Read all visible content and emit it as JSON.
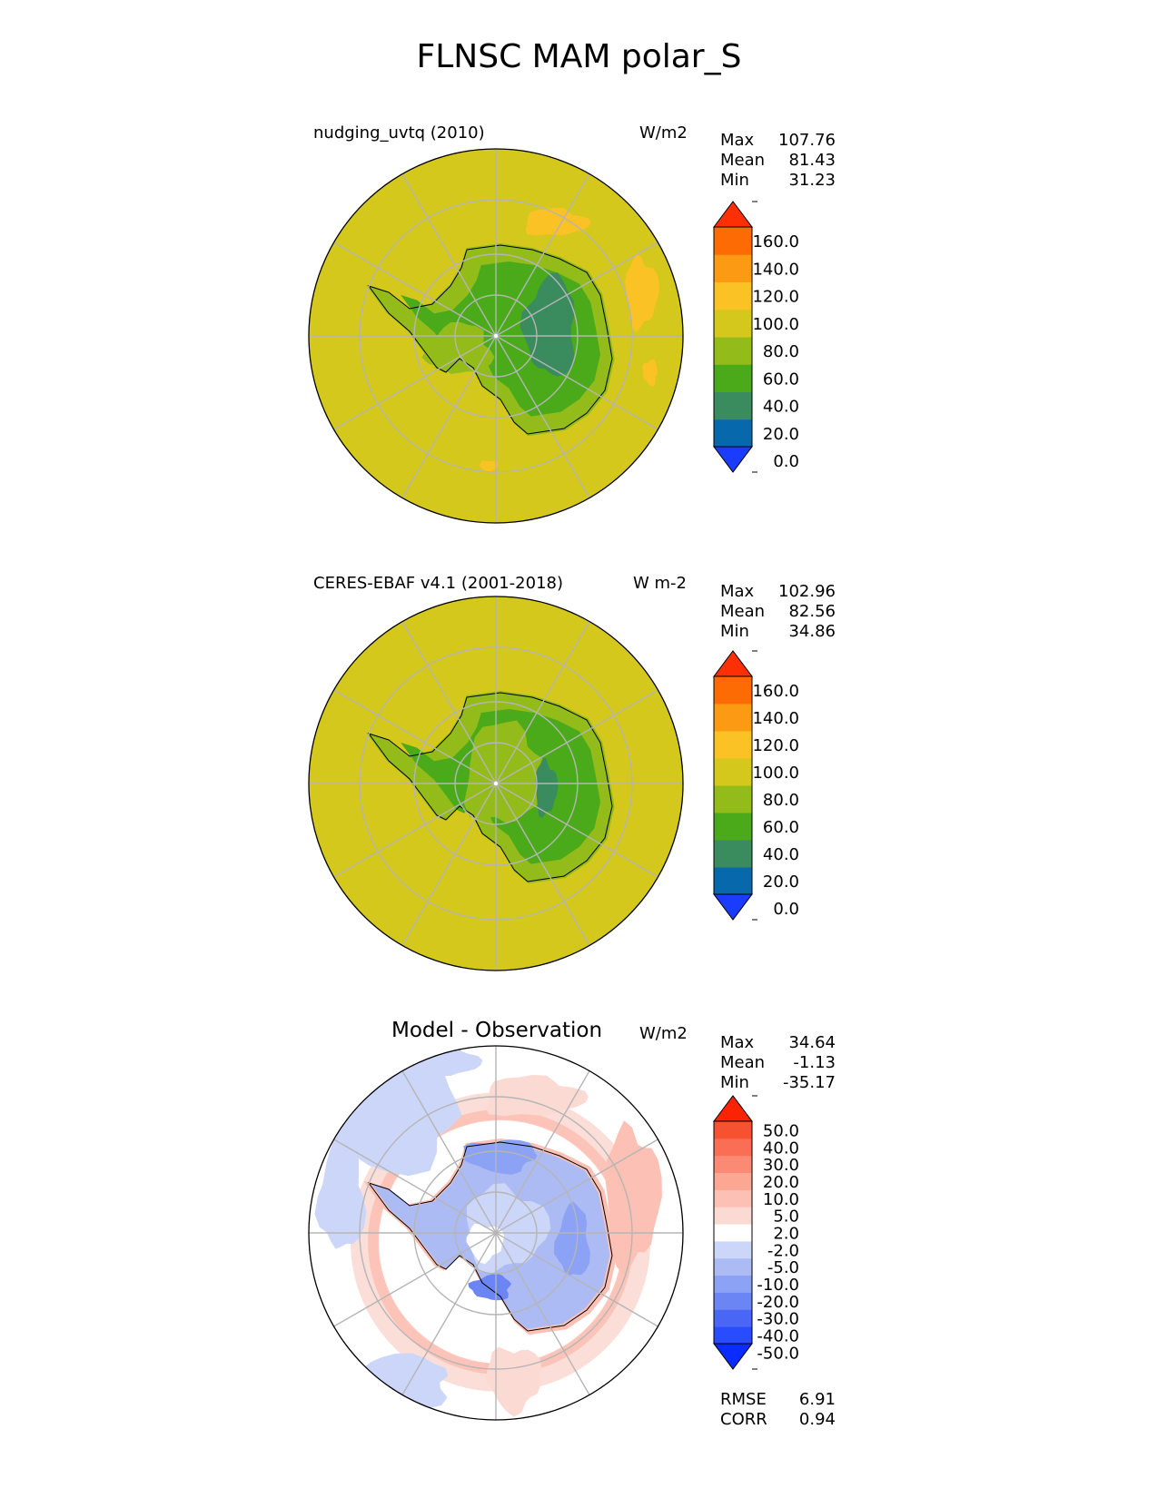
{
  "figure_title": "FLNSC MAM polar_S",
  "panels": [
    {
      "title_left": "nudging_uvtq (2010)",
      "units": "W/m2",
      "stats": {
        "labels": [
          "Max",
          "Mean",
          "Min"
        ],
        "values": [
          "107.76",
          "81.43",
          "31.23"
        ]
      },
      "colorbar": {
        "levels": [
          "160.0",
          "140.0",
          "120.0",
          "100.0",
          "80.0",
          "60.0",
          "40.0",
          "20.0",
          "0.0"
        ],
        "colors": [
          "#1a3cff",
          "#0868ac",
          "#3a8b5e",
          "#4aaa1a",
          "#93bb1a",
          "#d4c81c",
          "#fbc225",
          "#fd9a14",
          "#fd6c04",
          "#fd2f04"
        ]
      }
    },
    {
      "title_left": "CERES-EBAF v4.1 (2001-2018)",
      "units": "W m-2",
      "stats": {
        "labels": [
          "Max",
          "Mean",
          "Min"
        ],
        "values": [
          "102.96",
          "82.56",
          "34.86"
        ]
      },
      "colorbar": {
        "levels": [
          "160.0",
          "140.0",
          "120.0",
          "100.0",
          "80.0",
          "60.0",
          "40.0",
          "20.0",
          "0.0"
        ],
        "colors": [
          "#1a3cff",
          "#0868ac",
          "#3a8b5e",
          "#4aaa1a",
          "#93bb1a",
          "#d4c81c",
          "#fbc225",
          "#fd9a14",
          "#fd6c04",
          "#fd2f04"
        ]
      }
    },
    {
      "title_center": "Model - Observation",
      "units": "W/m2",
      "stats": {
        "labels": [
          "Max",
          "Mean",
          "Min"
        ],
        "values": [
          "34.64",
          "-1.13",
          "-35.17"
        ]
      },
      "colorbar": {
        "levels": [
          "50.0",
          "40.0",
          "30.0",
          "20.0",
          "10.0",
          "5.0",
          "2.0",
          "-2.0",
          "-5.0",
          "-10.0",
          "-20.0",
          "-30.0",
          "-40.0",
          "-50.0"
        ],
        "colors": [
          "#0a2cff",
          "#2a4cff",
          "#4a66f5",
          "#6b85f5",
          "#8ca2f5",
          "#adbbf5",
          "#ccd6f8",
          "#ffffff",
          "#fbdad4",
          "#fcc0b4",
          "#fca694",
          "#fb8a74",
          "#fa6e56",
          "#f65232",
          "#fa2404"
        ]
      },
      "metrics": {
        "labels": [
          "RMSE",
          "CORR"
        ],
        "values": [
          "6.91",
          "0.94"
        ]
      }
    }
  ],
  "chart_data": {
    "type": "heatmap",
    "title": "FLNSC MAM polar_S",
    "projection": "south polar stereographic",
    "maps": [
      {
        "name": "nudging_uvtq (2010)",
        "units": "W/m2",
        "max": 107.76,
        "mean": 81.43,
        "min": 31.23,
        "contour_levels": [
          0,
          20,
          40,
          60,
          80,
          100,
          120,
          140,
          160
        ],
        "extend": "both"
      },
      {
        "name": "CERES-EBAF v4.1 (2001-2018)",
        "units": "W m-2",
        "max": 102.96,
        "mean": 82.56,
        "min": 34.86,
        "contour_levels": [
          0,
          20,
          40,
          60,
          80,
          100,
          120,
          140,
          160
        ],
        "extend": "both"
      },
      {
        "name": "Model - Observation",
        "units": "W/m2",
        "max": 34.64,
        "mean": -1.13,
        "min": -35.17,
        "contour_levels": [
          -50,
          -40,
          -30,
          -20,
          -10,
          -5,
          -2,
          2,
          5,
          10,
          20,
          30,
          40,
          50
        ],
        "extend": "both",
        "rmse": 6.91,
        "corr": 0.94
      }
    ]
  }
}
